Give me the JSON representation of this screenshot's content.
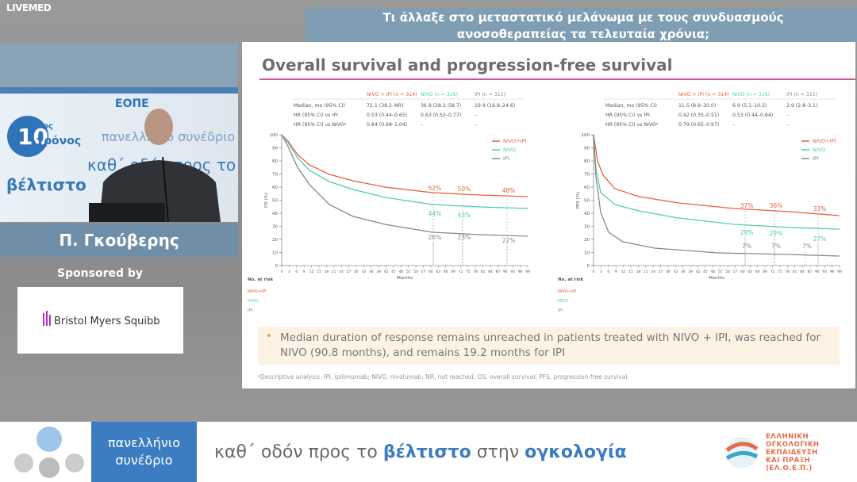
{
  "brand": "LIVEMED",
  "header_title_lines": [
    "Τι άλλαξε στο μεταστατικό μελάνωμα με τους συνδυασμούς",
    "ανοσοθεραπείας τα τελευταία χρόνια;"
  ],
  "video": {
    "badge_number": "10",
    "badge_suffix": "ος",
    "badge_word": "χρόνος",
    "org": "ΕΟΠΕ",
    "backdrop_text": "πανελλήνιο συνέδριο"
  },
  "speaker": {
    "name": "Π. Γκούβερης"
  },
  "sponsor": {
    "label": "Sponsored by",
    "name": "Bristol Myers Squibb"
  },
  "slide": {
    "title": "Overall survival and progression-free survival",
    "panels": [
      {
        "table": {
          "columns": [
            "NIVO + IPI (n = 314)",
            "NIVO (n = 316)",
            "IPI (n = 315)"
          ],
          "rows": [
            [
              "Median, mo (95% CI)",
              "72.1 (38.2–NR)",
              "36.9 (28.2–58.7)",
              "19.9 (16.8–24.6)"
            ],
            [
              "HR (95% CI) vs IPI",
              "0.53 (0.44–0.65)",
              "0.63 (0.52–0.77)",
              "–"
            ],
            [
              "HR (95% CI) vs NIVOᵃ",
              "0.84 (0.68–1.04)",
              "–",
              "–"
            ]
          ]
        },
        "y_label": "OS (%)",
        "x_label": "Months",
        "yticks": [
          0,
          10,
          20,
          30,
          40,
          50,
          60,
          70,
          80,
          90,
          100
        ],
        "xticks": [
          0,
          3,
          6,
          9,
          12,
          15,
          18,
          21,
          24,
          27,
          30,
          33,
          36,
          39,
          42,
          45,
          48,
          51,
          54,
          57,
          60,
          63,
          66,
          69,
          72,
          75,
          78,
          81,
          84,
          87,
          90,
          93,
          96,
          99
        ],
        "legend": [
          "NIVO+IPI",
          "NIVO",
          "IPI"
        ],
        "rates": [
          "52%",
          "50%",
          "48%",
          "44%",
          "43%",
          "26%",
          "23%",
          "22%"
        ],
        "at_risk": {
          "title": "No. at risk",
          "groups": [
            "NIVO+IPI",
            "NIVO",
            "IPI"
          ]
        }
      },
      {
        "table": {
          "columns": [
            "NIVO + IPI (n = 314)",
            "NIVO (n = 316)",
            "IPI (n = 315)"
          ],
          "rows": [
            [
              "Median, mo (95% CI)",
              "11.5 (8.9–20.0)",
              "6.9 (5.1–10.2)",
              "2.9 (2.8–3.1)"
            ],
            [
              "HR (95% CI) vs IPI",
              "0.42 (0.35–0.51)",
              "0.53 (0.44–0.64)",
              "–"
            ],
            [
              "HR (95% CI) vs NIVOᵃ",
              "0.79 (0.65–0.97)",
              "–",
              "–"
            ]
          ]
        },
        "y_label": "PFS (%)",
        "x_label": "Months",
        "yticks": [
          0,
          10,
          20,
          30,
          40,
          50,
          60,
          70,
          80,
          90,
          100
        ],
        "xticks": [
          0,
          3,
          6,
          9,
          12,
          15,
          18,
          21,
          24,
          27,
          30,
          33,
          36,
          39,
          42,
          45,
          48,
          51,
          54,
          57,
          60,
          63,
          66,
          69,
          72,
          75,
          78,
          81,
          84,
          87,
          90,
          93,
          96,
          99
        ],
        "legend": [
          "NIVO+IPI",
          "NIVO",
          "IPI"
        ],
        "rates": [
          "37%",
          "36%",
          "33%",
          "29%",
          "29%",
          "27%",
          "7%",
          "7%",
          "7%"
        ],
        "at_risk": {
          "title": "No. at risk",
          "groups": [
            "NIVO+IPI",
            "NIVO",
            "IPI"
          ]
        }
      }
    ],
    "bullet": "Median duration of response remains unreached in patients treated with NIVO + IPI, was reached for NIVO (90.8 months), and remains 19.2 months for IPI",
    "footnote": "ᵃDescriptive analysis. IPI, ipilimumab; NIVO, nivolumab; NR, not reached; OS, overall survival; PFS, progression-free survival."
  },
  "banner": {
    "box_lines": [
      "πανελλήνιο",
      "συνέδριο"
    ],
    "tagline": [
      "καθ΄ οδόν προς το",
      "βέλτιστο",
      "στην",
      "ογκολογία"
    ],
    "logo_lines": [
      "ΕΛΛΗΝΙΚΗ",
      "ΟΓΚΟΛΟΓΙΚΗ",
      "ΕΚΠΑΙΔΕΥΣΗ",
      "ΚΑΙ ΠΡΑΞΗ",
      "(ΕΛ.Ο.Ε.Π.)"
    ]
  }
}
